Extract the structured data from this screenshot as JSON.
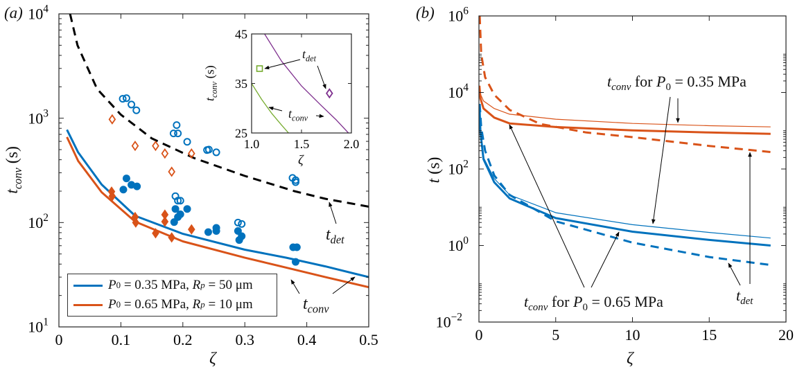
{
  "colors": {
    "blue": "#0072BD",
    "orange": "#D95319",
    "green": "#77AC30",
    "purple": "#7E2F8E",
    "black": "#000000"
  },
  "panel_labels": {
    "a": "(a)",
    "b": "(b)"
  },
  "chart_data": [
    {
      "id": "panel-a",
      "type": "scatter+line",
      "xlabel": "ζ",
      "ylabel": {
        "sym": "t",
        "sub": "conv",
        "unit": " (s)"
      },
      "xscale": "linear",
      "yscale": "log",
      "xlim": [
        0,
        0.5
      ],
      "ylim": [
        10,
        10000
      ],
      "xticks": [
        0,
        0.1,
        0.2,
        0.3,
        0.4,
        0.5
      ],
      "xtick_labels": [
        "0",
        "0.1",
        "0.2",
        "0.3",
        "0.4",
        "0.5"
      ],
      "yticks": [
        10,
        100,
        1000,
        10000
      ],
      "ytick_labels": [
        {
          "base": "10",
          "exp": "1"
        },
        {
          "base": "10",
          "exp": "2"
        },
        {
          "base": "10",
          "exp": "3"
        },
        {
          "base": "10",
          "exp": "4"
        }
      ],
      "legend": {
        "placement": "bottom-left",
        "entries": [
          {
            "color": "blue",
            "p": "P",
            "p_sub": "0",
            "p_val": " = 0.35 MPa, ",
            "r": "R",
            "r_sub": "p",
            "r_val": " = 50 μm"
          },
          {
            "color": "orange",
            "p": "P",
            "p_sub": "0",
            "p_val": " = 0.65 MPa, ",
            "r": "R",
            "r_sub": "p",
            "r_val": " = 10 μm"
          }
        ]
      },
      "lines": [
        {
          "color": "blue",
          "style": "solid",
          "x": [
            0.013,
            0.031,
            0.069,
            0.123,
            0.2,
            0.3,
            0.367,
            0.43,
            0.5
          ],
          "y": [
            776,
            471,
            231,
            116,
            78,
            55,
            46,
            38,
            30
          ]
        },
        {
          "color": "orange",
          "style": "solid",
          "x": [
            0.013,
            0.031,
            0.069,
            0.123,
            0.2,
            0.3,
            0.367,
            0.43,
            0.5
          ],
          "y": [
            660,
            390,
            195,
            102,
            66,
            46,
            37,
            30,
            24
          ]
        },
        {
          "color": "black",
          "style": "dashed",
          "x": [
            0.018,
            0.03,
            0.0615,
            0.1,
            0.15,
            0.218,
            0.3,
            0.38,
            0.43,
            0.5
          ],
          "y": [
            10000,
            5000,
            1910,
            1080,
            640,
            415,
            280,
            200,
            169,
            142
          ]
        }
      ],
      "points": [
        {
          "color": "blue",
          "marker": "circle-open",
          "x": [
            0.103,
            0.109,
            0.117,
            0.125,
            0.19,
            0.185,
            0.192,
            0.207,
            0.239,
            0.242,
            0.254,
            0.377,
            0.382,
            0.382,
            0.188,
            0.192,
            0.196,
            0.289,
            0.295
          ],
          "y": [
            1535,
            1556,
            1352,
            1191,
            859,
            715,
            715,
            594,
            495,
            500,
            471,
            268,
            244,
            255,
            179,
            162,
            162,
            100,
            97
          ]
        },
        {
          "color": "blue",
          "marker": "circle-filled",
          "x": [
            0.104,
            0.109,
            0.117,
            0.126,
            0.188,
            0.207,
            0.196,
            0.192,
            0.186,
            0.241,
            0.254,
            0.254,
            0.289,
            0.295,
            0.291,
            0.378,
            0.384,
            0.382
          ],
          "y": [
            207,
            265,
            230,
            222,
            135,
            135,
            120,
            113,
            101,
            81,
            89,
            83,
            83,
            74,
            68,
            58,
            58,
            42
          ]
        },
        {
          "color": "orange",
          "marker": "diamond-open",
          "x": [
            0.086,
            0.123,
            0.156,
            0.171,
            0.214,
            0.182
          ],
          "y": [
            975,
            543,
            543,
            459,
            459,
            307
          ]
        },
        {
          "color": "orange",
          "marker": "diamond-filled",
          "x": [
            0.085,
            0.086,
            0.123,
            0.124,
            0.171,
            0.171,
            0.156,
            0.182,
            0.214
          ],
          "y": [
            198,
            179,
            113,
            100,
            119,
            102,
            79,
            72,
            86
          ]
        }
      ],
      "annotations": {
        "t_det": {
          "sym": "t",
          "sub": "det"
        },
        "t_conv": {
          "sym": "t",
          "sub": "conv"
        }
      }
    },
    {
      "id": "panel-a-inset",
      "type": "scatter+line",
      "xlabel": "ζ",
      "ylabel": {
        "sym": "t",
        "sub": "conv",
        "unit": " (s)"
      },
      "xscale": "linear",
      "yscale": "linear",
      "xlim": [
        1.0,
        2.0
      ],
      "ylim": [
        25,
        45
      ],
      "xticks": [
        1.0,
        1.5,
        2.0
      ],
      "xtick_labels": [
        "1.0",
        "1.5",
        "2.0"
      ],
      "yticks": [
        25,
        35,
        45
      ],
      "ytick_labels": [
        "25",
        "35",
        "45"
      ],
      "lines": [
        {
          "color": "green",
          "style": "solid",
          "x": [
            1.0,
            1.1,
            1.2,
            1.3,
            1.37
          ],
          "y": [
            35,
            31.8,
            29.0,
            26.6,
            25
          ]
        },
        {
          "color": "purple",
          "style": "solid",
          "x": [
            1.13,
            1.3,
            1.5,
            1.7,
            1.85,
            1.97
          ],
          "y": [
            45,
            39.5,
            34.5,
            30.5,
            27.6,
            25
          ]
        }
      ],
      "points": [
        {
          "color": "green",
          "marker": "square-open",
          "x": [
            1.08
          ],
          "y": [
            38
          ]
        },
        {
          "color": "purple",
          "marker": "diamond-open",
          "x": [
            1.78
          ],
          "y": [
            33
          ]
        }
      ],
      "annotations": {
        "t_det": {
          "sym": "t",
          "sub": "det"
        },
        "t_conv": {
          "sym": "t",
          "sub": "conv"
        }
      }
    },
    {
      "id": "panel-b",
      "type": "line",
      "xlabel": "ζ",
      "ylabel": {
        "sym": "t",
        "unit": " (s)"
      },
      "xscale": "linear",
      "yscale": "log",
      "xlim": [
        0,
        20
      ],
      "ylim": [
        0.01,
        1000000
      ],
      "xticks": [
        0,
        5,
        10,
        15,
        20
      ],
      "xtick_labels": [
        "0",
        "5",
        "10",
        "15",
        "20"
      ],
      "yticks": [
        0.01,
        1,
        100,
        10000,
        1000000
      ],
      "ytick_labels": [
        {
          "base": "10",
          "exp": "−2"
        },
        {
          "base": "10",
          "exp": "0"
        },
        {
          "base": "10",
          "exp": "2"
        },
        {
          "base": "10",
          "exp": "4"
        },
        {
          "base": "10",
          "exp": "6"
        }
      ],
      "lines": [
        {
          "color": "orange",
          "style": "thin",
          "x": [
            0.03,
            0.1,
            0.3,
            1,
            2,
            5,
            10,
            15,
            19
          ],
          "y": [
            15000,
            9000,
            6000,
            3800,
            2700,
            2000,
            1550,
            1350,
            1260
          ]
        },
        {
          "color": "orange",
          "style": "solid",
          "x": [
            0.03,
            0.1,
            0.3,
            1,
            2,
            5,
            10,
            15,
            19
          ],
          "y": [
            15000,
            7000,
            3800,
            2200,
            1550,
            1250,
            1020,
            900,
            830
          ]
        },
        {
          "color": "orange",
          "style": "dashed",
          "x": [
            0.05,
            0.15,
            0.4,
            1,
            2,
            4,
            7,
            10,
            15,
            19
          ],
          "y": [
            1000000,
            100000,
            25000,
            8700,
            3500,
            1500,
            900,
            680,
            400,
            278
          ]
        },
        {
          "color": "blue",
          "style": "thin",
          "x": [
            0.03,
            0.1,
            0.3,
            1,
            2,
            5,
            10,
            15,
            19
          ],
          "y": [
            5000,
            1000,
            200,
            56,
            21,
            7.2,
            3.5,
            2.2,
            1.57
          ]
        },
        {
          "color": "blue",
          "style": "solid",
          "x": [
            0.03,
            0.1,
            0.3,
            1,
            2,
            5,
            10,
            15,
            19
          ],
          "y": [
            5000,
            900,
            180,
            45,
            17,
            5.2,
            2.3,
            1.4,
            1.0
          ]
        },
        {
          "color": "blue",
          "style": "dashed",
          "x": [
            0.05,
            0.15,
            0.4,
            1,
            2,
            5,
            10,
            15,
            19
          ],
          "y": [
            5000,
            1200,
            300,
            68,
            21,
            4.3,
            1.19,
            0.5,
            0.31
          ]
        }
      ],
      "annotations": {
        "tconv_035": {
          "sym": "t",
          "sub": "conv",
          "rest": " for ",
          "p": "P",
          "p_sub": "0",
          "val": " = 0.35 MPa"
        },
        "tconv_065": {
          "sym": "t",
          "sub": "conv",
          "rest": " for ",
          "p": "P",
          "p_sub": "0",
          "val": " = 0.65 MPa"
        },
        "t_det": {
          "sym": "t",
          "sub": "det"
        }
      }
    }
  ]
}
